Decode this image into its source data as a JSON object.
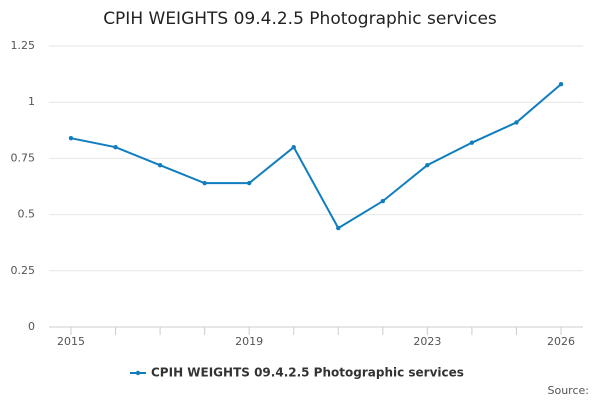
{
  "chart_data": {
    "type": "line",
    "title": "CPIH WEIGHTS 09.4.2.5 Photographic services",
    "categories": [
      "2015",
      null,
      null,
      null,
      "2019",
      null,
      null,
      null,
      "2023",
      null,
      null,
      "2026"
    ],
    "series": [
      {
        "name": "CPIH WEIGHTS 09.4.2.5 Photographic services",
        "color": "#0f7dbe",
        "values": [
          0.84,
          0.8,
          0.72,
          0.64,
          0.64,
          0.8,
          0.44,
          0.56,
          0.72,
          0.82,
          0.91,
          1.08
        ]
      }
    ],
    "ylim": [
      0,
      1.25
    ],
    "yticks": [
      0,
      0.25,
      0.5,
      0.75,
      1,
      1.25
    ],
    "grid": true,
    "source": "Source:"
  }
}
